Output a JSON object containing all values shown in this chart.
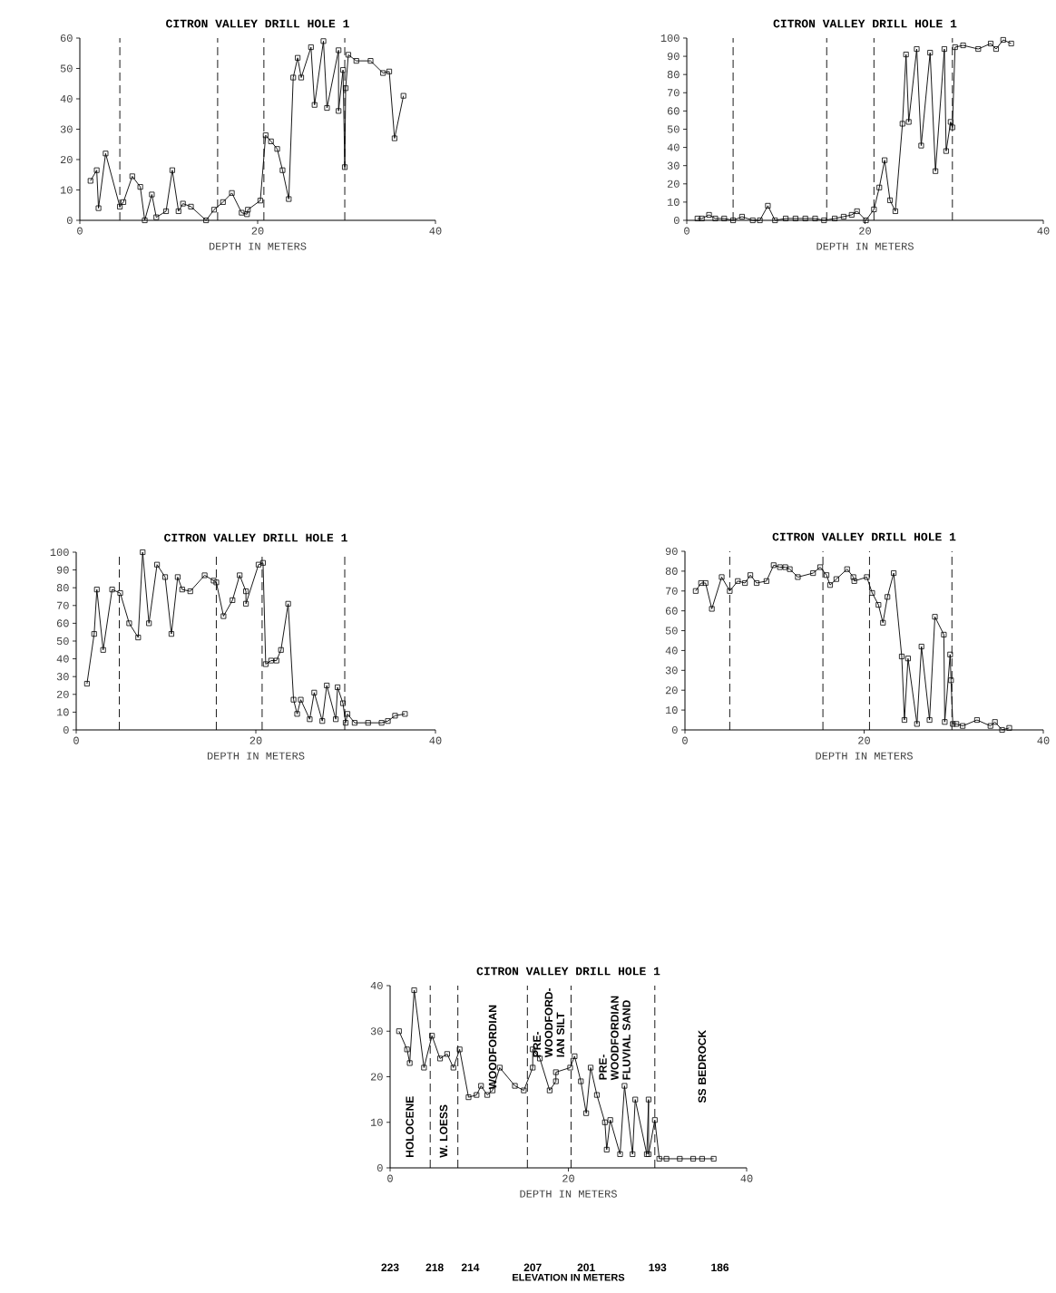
{
  "chart_data": [
    {
      "type": "line",
      "title": "CITRON VALLEY DRILL HOLE 1",
      "xlabel": "DEPTH IN METERS",
      "marker": "square",
      "color": "#000000",
      "xlim": [
        0,
        40
      ],
      "xticks": [
        0,
        20,
        40
      ],
      "ylim": [
        0,
        60
      ],
      "yticks": [
        0,
        10,
        20,
        30,
        40,
        50,
        60
      ],
      "x": [
        1.2,
        1.9,
        2.1,
        2.9,
        4.5,
        4.9,
        5.9,
        6.8,
        7.3,
        8.1,
        8.6,
        9.7,
        10.4,
        11.1,
        11.6,
        12.5,
        14.2,
        15.1,
        16.1,
        17.1,
        18.2,
        18.8,
        18.9,
        20.3,
        20.9,
        21.5,
        22.2,
        22.8,
        23.5,
        24.0,
        24.5,
        24.9,
        26.0,
        26.4,
        27.4,
        27.8,
        29.1,
        29.1,
        29.6,
        29.8,
        29.9,
        30.2,
        31.1,
        32.7,
        34.1,
        34.8,
        35.4,
        36.4
      ],
      "values": [
        13,
        16.5,
        4,
        22,
        4.5,
        6,
        14.5,
        11,
        0,
        8.5,
        1,
        3,
        16.5,
        3,
        5.5,
        4.5,
        0,
        3.5,
        6,
        9,
        2.5,
        2,
        3.5,
        6.5,
        28,
        26,
        23.5,
        16.5,
        7,
        47,
        53.5,
        47,
        57,
        38,
        59,
        37,
        56,
        36,
        49.5,
        17.5,
        43.5,
        54.5,
        52.5,
        52.5,
        48.5,
        49,
        27,
        41
      ],
      "ref_lines": [
        {
          "axis": "x",
          "value": 4.5,
          "line_style": "dashed"
        },
        {
          "axis": "x",
          "value": 15.5,
          "line_style": "dashed"
        },
        {
          "axis": "x",
          "value": 20.7,
          "line_style": "dashed"
        },
        {
          "axis": "x",
          "value": 29.8,
          "line_style": "dashed"
        }
      ]
    },
    {
      "type": "line",
      "title": "CITRON VALLEY DRILL HOLE 1",
      "xlabel": "DEPTH IN METERS",
      "marker": "square",
      "color": "#000000",
      "xlim": [
        0,
        40
      ],
      "xticks": [
        0,
        20,
        40
      ],
      "ylim": [
        0,
        100
      ],
      "yticks": [
        0,
        10,
        20,
        30,
        40,
        50,
        60,
        70,
        80,
        90,
        100
      ],
      "x": [
        1.2,
        1.7,
        2.5,
        3.2,
        4.2,
        5.2,
        6.2,
        7.4,
        8.2,
        9.1,
        9.9,
        11.1,
        12.2,
        13.3,
        14.4,
        15.4,
        16.6,
        17.6,
        18.5,
        19.1,
        20.1,
        21.0,
        21.6,
        22.2,
        22.8,
        23.4,
        24.2,
        24.6,
        24.9,
        25.8,
        26.3,
        27.3,
        27.9,
        28.9,
        29.1,
        29.6,
        29.8,
        30.1,
        31.0,
        32.7,
        34.1,
        34.7,
        35.5,
        36.4
      ],
      "values": [
        1,
        1,
        3,
        1,
        1,
        0,
        2,
        0,
        0,
        8,
        0,
        1,
        1,
        1,
        1,
        0,
        1,
        2,
        3,
        5,
        0,
        6,
        18,
        33,
        11,
        5,
        53,
        91,
        54,
        94,
        41,
        92,
        27,
        94,
        38,
        54,
        51,
        95,
        96,
        94,
        97,
        94,
        99,
        97
      ],
      "ref_lines": [
        {
          "axis": "x",
          "value": 5.2,
          "line_style": "dashed"
        },
        {
          "axis": "x",
          "value": 15.7,
          "line_style": "dashed"
        },
        {
          "axis": "x",
          "value": 21.0,
          "line_style": "dashed"
        },
        {
          "axis": "x",
          "value": 29.8,
          "line_style": "dashed"
        }
      ]
    },
    {
      "type": "line",
      "title": "CITRON VALLEY DRILL HOLE 1",
      "xlabel": "DEPTH IN METERS",
      "marker": "square",
      "color": "#000000",
      "xlim": [
        0,
        40
      ],
      "xticks": [
        0,
        20,
        40
      ],
      "ylim": [
        0,
        100
      ],
      "yticks": [
        0,
        10,
        20,
        30,
        40,
        50,
        60,
        70,
        80,
        90,
        100
      ],
      "x": [
        1.2,
        2.0,
        2.3,
        3.0,
        4.0,
        4.9,
        5.9,
        6.9,
        7.4,
        8.1,
        9.0,
        9.9,
        10.6,
        11.3,
        11.8,
        12.7,
        14.3,
        15.3,
        15.6,
        16.4,
        17.4,
        18.2,
        18.9,
        18.9,
        20.3,
        20.8,
        21.1,
        21.7,
        22.3,
        22.8,
        23.6,
        24.2,
        24.6,
        25.0,
        26.0,
        26.5,
        27.4,
        27.9,
        28.9,
        29.1,
        29.7,
        30.0,
        30.2,
        31.0,
        32.5,
        34.0,
        34.7,
        35.5,
        36.6
      ],
      "values": [
        26,
        54,
        79,
        45,
        79,
        77,
        60,
        52,
        100,
        60,
        93,
        86,
        54,
        86,
        79,
        78,
        87,
        84,
        83,
        64,
        73,
        87,
        78,
        71,
        93,
        94,
        37,
        39,
        39,
        45,
        71,
        17,
        9,
        17,
        6,
        21,
        5,
        25,
        6,
        24,
        15,
        4,
        9,
        4,
        4,
        4,
        5,
        8,
        9
      ],
      "ref_lines": [
        {
          "axis": "x",
          "value": 4.8,
          "line_style": "dashed"
        },
        {
          "axis": "x",
          "value": 15.6,
          "line_style": "dashed"
        },
        {
          "axis": "x",
          "value": 20.7,
          "line_style": "dashed"
        },
        {
          "axis": "x",
          "value": 29.9,
          "line_style": "dashed"
        }
      ]
    },
    {
      "type": "line",
      "title": "CITRON VALLEY DRILL HOLE 1",
      "xlabel": "DEPTH IN METERS",
      "marker": "square",
      "color": "#000000",
      "xlim": [
        0,
        40
      ],
      "xticks": [
        0,
        20,
        40
      ],
      "ylim": [
        0,
        90
      ],
      "yticks": [
        0,
        10,
        20,
        30,
        40,
        50,
        60,
        70,
        80,
        90
      ],
      "x": [
        1.2,
        1.8,
        2.3,
        3.0,
        4.1,
        5.0,
        5.9,
        6.7,
        7.3,
        8.0,
        9.1,
        9.9,
        10.6,
        11.2,
        11.7,
        12.6,
        14.3,
        15.1,
        15.8,
        16.2,
        16.9,
        18.1,
        18.8,
        18.9,
        20.3,
        20.9,
        21.6,
        22.1,
        22.6,
        23.3,
        24.2,
        24.5,
        24.9,
        25.9,
        26.4,
        27.3,
        27.9,
        28.9,
        29.0,
        29.6,
        29.7,
        29.9,
        30.3,
        31.0,
        32.6,
        34.1,
        34.6,
        35.4,
        36.2
      ],
      "values": [
        70,
        74,
        74,
        61,
        77,
        70,
        75,
        74,
        78,
        74,
        75,
        83,
        82,
        82,
        81,
        77,
        79,
        82,
        78,
        73,
        76,
        81,
        77,
        75,
        77,
        69,
        63,
        54,
        67,
        79,
        37,
        5,
        36,
        3,
        42,
        5,
        57,
        48,
        4,
        38,
        25,
        3,
        3,
        2,
        5,
        2,
        4,
        0,
        1
      ],
      "ref_lines": [
        {
          "axis": "x",
          "value": 5.0,
          "line_style": "dashed"
        },
        {
          "axis": "x",
          "value": 15.4,
          "line_style": "dashed"
        },
        {
          "axis": "x",
          "value": 20.6,
          "line_style": "dashed"
        },
        {
          "axis": "x",
          "value": 29.8,
          "line_style": "dashed"
        }
      ]
    },
    {
      "type": "line",
      "title": "CITRON VALLEY DRILL HOLE 1",
      "xlabel": "DEPTH IN METERS",
      "marker": "square",
      "color": "#000000",
      "xlim": [
        0,
        40
      ],
      "xticks": [
        0,
        20,
        40
      ],
      "ylim": [
        0,
        40
      ],
      "yticks": [
        0,
        10,
        20,
        30,
        40
      ],
      "x2lim": [
        223,
        183
      ],
      "x2label": "ELEVATION IN METERS",
      "x2ticks": [
        223,
        218,
        214,
        207,
        201,
        193,
        186
      ],
      "x": [
        1.0,
        1.9,
        2.2,
        2.7,
        3.8,
        4.7,
        5.6,
        6.4,
        7.1,
        7.8,
        8.8,
        9.7,
        10.2,
        10.9,
        11.5,
        12.3,
        14.0,
        15.0,
        16.0,
        16.0,
        16.8,
        17.9,
        18.6,
        18.6,
        20.2,
        20.7,
        21.4,
        22.0,
        22.5,
        23.2,
        24.1,
        24.3,
        24.7,
        25.8,
        26.3,
        27.2,
        27.5,
        28.8,
        29.0,
        29.0,
        29.7,
        30.2,
        31.0,
        32.5,
        34.0,
        35.0,
        36.3
      ],
      "values": [
        30,
        26,
        23,
        39,
        22,
        29,
        24,
        25,
        22,
        26,
        15.5,
        16,
        18,
        16,
        17,
        22,
        18,
        17,
        22,
        26,
        24,
        17,
        19,
        21,
        22,
        24.5,
        19,
        12,
        22,
        16,
        10,
        4,
        10.5,
        3,
        18,
        3,
        15,
        3,
        15,
        3,
        10.5,
        2,
        2,
        2,
        2,
        2,
        2
      ],
      "ref_lines": [
        {
          "axis": "x",
          "value": 4.5,
          "line_style": "dashed"
        },
        {
          "axis": "x",
          "value": 7.6,
          "line_style": "dashed"
        },
        {
          "axis": "x",
          "value": 15.4,
          "line_style": "dashed"
        },
        {
          "axis": "x",
          "value": 20.3,
          "line_style": "dashed"
        },
        {
          "axis": "x",
          "value": 29.7,
          "line_style": "dashed"
        }
      ],
      "annotations": [
        "HOLOCENE",
        "W. LOESS",
        "WOODFORDIAN",
        "PRE- WOODFORD- IAN SILT",
        "PRE- WOODFORDIAN FLUVIAL SAND",
        "SS BEDROCK"
      ]
    }
  ]
}
